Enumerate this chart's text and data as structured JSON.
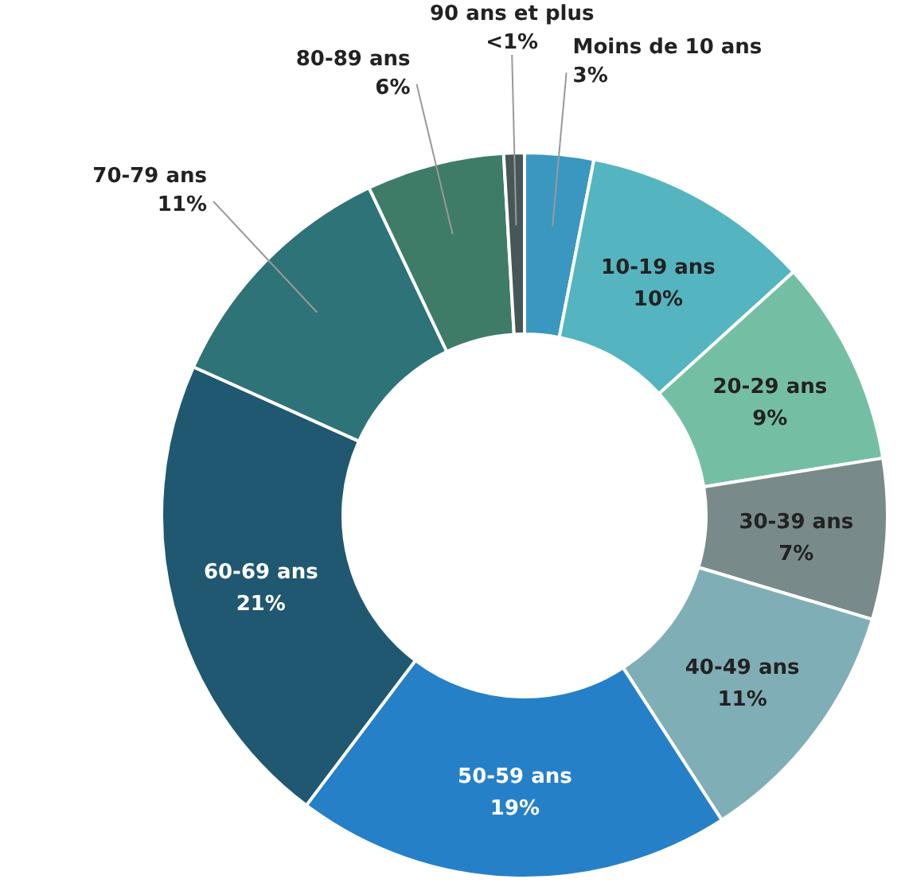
{
  "chart_data": {
    "type": "donut",
    "categories": [
      "Moins de 10 ans",
      "10-19 ans",
      "20-29 ans",
      "30-39 ans",
      "40-49 ans",
      "50-59 ans",
      "60-69 ans",
      "70-79 ans",
      "80-89 ans",
      "90 ans et plus"
    ],
    "values": [
      3,
      10,
      9,
      7,
      11,
      19,
      21,
      11,
      6,
      0.9
    ],
    "value_labels": [
      "3%",
      "10%",
      "9%",
      "7%",
      "11%",
      "19%",
      "21%",
      "11%",
      "6%",
      "<1%"
    ],
    "colors": [
      "#3a97c0",
      "#54b5c0",
      "#74bfa4",
      "#788a8a",
      "#80aeb6",
      "#2680c8",
      "#1f5870",
      "#2e7378",
      "#3e7c68",
      "#475657"
    ],
    "legend": false
  }
}
